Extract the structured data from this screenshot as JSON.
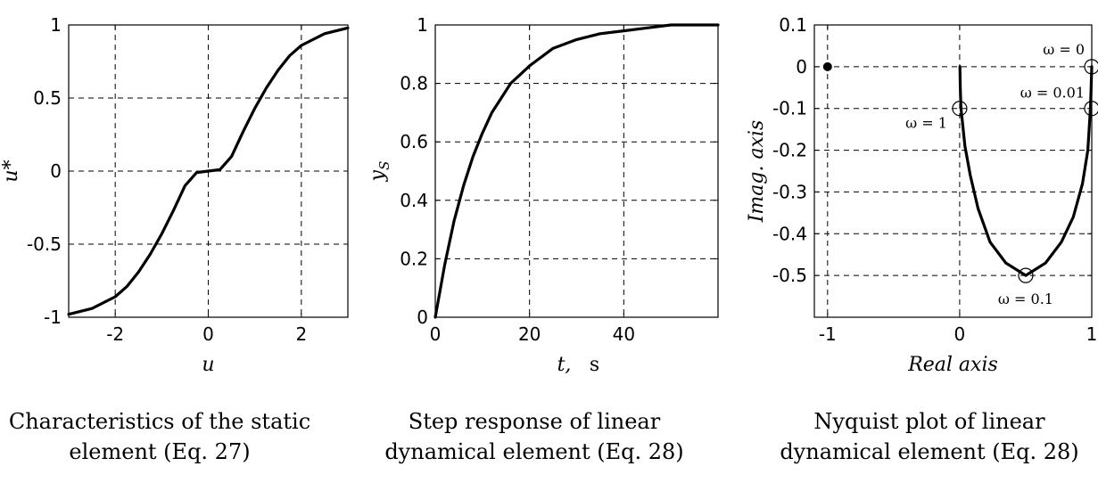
{
  "chart_data": [
    {
      "type": "line",
      "title": "",
      "xlabel": "u",
      "ylabel": "u*",
      "xlim": [
        -3,
        3
      ],
      "ylim": [
        -1,
        1
      ],
      "xticks": [
        "-2",
        "0",
        "2"
      ],
      "yticks": [
        "-1",
        "-0.5",
        "0",
        "0.5",
        "1"
      ],
      "grid": true,
      "series": [
        {
          "x": [
            -3,
            -2.5,
            -2,
            -1.75,
            -1.5,
            -1.25,
            -1,
            -0.75,
            -0.5,
            -0.25,
            0,
            0.25,
            0.5,
            0.75,
            1,
            1.25,
            1.5,
            1.75,
            2,
            2.5,
            3
          ],
          "y": [
            -0.98,
            -0.94,
            -0.86,
            -0.79,
            -0.69,
            -0.57,
            -0.43,
            -0.27,
            -0.1,
            -0.01,
            0,
            0.01,
            0.1,
            0.27,
            0.43,
            0.57,
            0.69,
            0.79,
            0.86,
            0.94,
            0.98
          ]
        }
      ]
    },
    {
      "type": "line",
      "title": "",
      "xlabel": "t,",
      "xunit": "s",
      "ylabel": "y",
      "ylabel_sub": "S",
      "xlim": [
        0,
        60
      ],
      "ylim": [
        0,
        1
      ],
      "xticks": [
        "0",
        "20",
        "40"
      ],
      "yticks": [
        "0",
        "0.2",
        "0.4",
        "0.6",
        "0.8",
        "1"
      ],
      "grid": true,
      "series": [
        {
          "x": [
            0,
            2,
            4,
            6,
            8,
            10,
            12,
            14,
            16,
            18,
            20,
            25,
            30,
            35,
            40,
            45,
            50,
            55,
            60
          ],
          "y": [
            0,
            0.18,
            0.33,
            0.45,
            0.55,
            0.63,
            0.7,
            0.75,
            0.8,
            0.83,
            0.86,
            0.92,
            0.95,
            0.97,
            0.98,
            0.99,
            1.0,
            1.0,
            1.0
          ]
        }
      ]
    },
    {
      "type": "line",
      "title": "",
      "xlabel": "Real axis",
      "ylabel": "Imag. axis",
      "xlim": [
        -1.1,
        1
      ],
      "ylim": [
        -0.6,
        0.1
      ],
      "xticks": [
        "-1",
        "0",
        "1"
      ],
      "yticks": [
        "0.1",
        "0",
        "-0.1",
        "-0.2",
        "-0.3",
        "-0.4",
        "-0.5"
      ],
      "grid": true,
      "series": [
        {
          "x": [
            1,
            0.995,
            0.99,
            0.97,
            0.93,
            0.86,
            0.77,
            0.65,
            0.5,
            0.35,
            0.23,
            0.14,
            0.08,
            0.04,
            0.02,
            0.01,
            0.005,
            0.002
          ],
          "y": [
            0,
            -0.05,
            -0.1,
            -0.2,
            -0.28,
            -0.36,
            -0.42,
            -0.47,
            -0.5,
            -0.47,
            -0.42,
            -0.34,
            -0.26,
            -0.19,
            -0.13,
            -0.1,
            -0.05,
            0
          ]
        }
      ],
      "markers": [
        {
          "x": 1,
          "y": 0,
          "label": "ω = 0"
        },
        {
          "x": 1,
          "y": -0.1,
          "label": "ω = 0.01"
        },
        {
          "x": 0.5,
          "y": -0.5,
          "label": "ω = 0.1"
        },
        {
          "x": 0,
          "y": -0.1,
          "label": "ω = 1"
        }
      ],
      "critical_point": {
        "x": -1,
        "y": 0
      }
    }
  ],
  "captions": [
    {
      "line1": "Characteristics of the static",
      "line2": "element (Eq. 27)"
    },
    {
      "line1": "Step response of linear",
      "line2": "dynamical element (Eq. 28)"
    },
    {
      "line1": "Nyquist plot of linear",
      "line2": "dynamical element (Eq. 28)"
    }
  ]
}
